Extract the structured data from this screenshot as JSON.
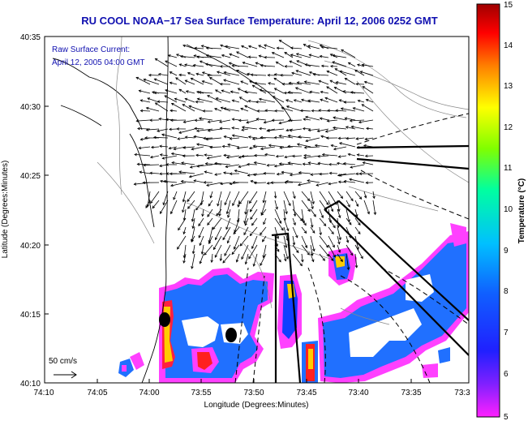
{
  "title": "RU COOL  NOAA−17  Sea Surface Temperature:  April 12, 2006 0252 GMT",
  "annotation": {
    "line1": "Raw Surface Current:",
    "line2": "April 12, 2005 04:00 GMT"
  },
  "scale": {
    "label": "50 cm/s"
  },
  "axes": {
    "xlabel": "Longitude (Degrees:Minutes)",
    "ylabel": "Latitude (Degrees:Minutes)",
    "xticks": [
      "74:10",
      "74:05",
      "74:00",
      "73:55",
      "73:50",
      "73:45",
      "73:40",
      "73:35",
      "73:3"
    ],
    "yticks": [
      "40:35",
      "40:30",
      "40:25",
      "40:20",
      "40:15",
      "40:10"
    ]
  },
  "colorbar": {
    "label": "Temperature (°C)",
    "ticks": [
      "15",
      "14",
      "13",
      "12",
      "11",
      "10",
      "9",
      "8",
      "7",
      "6",
      "5"
    ],
    "range": [
      5,
      15
    ]
  },
  "colors": {
    "title": "#1010b0",
    "annotation": "#1010b0",
    "sst_cold": "#ff40ff",
    "sst_warm": "#2060ff"
  }
}
